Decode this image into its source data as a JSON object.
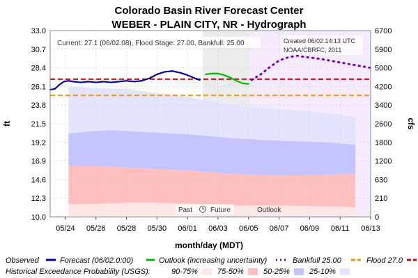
{
  "chart_data": {
    "type": "line",
    "title": "Colorado Basin River Forecast Center",
    "subtitle": "WEBER - PLAIN CITY, NR - Hydrograph",
    "xlabel": "month/day (MDT)",
    "ylabel_left": "ft",
    "ylabel_right": "cfs",
    "x_ticks": [
      "05/24",
      "05/26",
      "05/28",
      "05/30",
      "06/01",
      "06/03",
      "06/05",
      "06/07",
      "06/09",
      "06/11",
      "06/13"
    ],
    "y_ticks_left": [
      "33.0",
      "30.7",
      "28.4",
      "26.1",
      "23.8",
      "21.5",
      "19.2",
      "16.9",
      "14.6",
      "12.3",
      "10.0"
    ],
    "y_ticks_right": [
      "6700",
      "5900",
      "5000",
      "4200",
      "3400",
      "2600",
      "1800",
      "1200",
      "630",
      "210",
      "0"
    ],
    "xlim_days_from_may23": [
      0,
      21
    ],
    "ylim_ft": [
      10.0,
      33.0
    ],
    "current_info": "Current: 27.1 (06/02.08), Flood Stage: 27.00, Bankfull: 25.00",
    "created_line1": "Created 06/02.14:13 UTC",
    "created_line2": "NOAA/CBRFC, 2011",
    "region_labels": {
      "past": "Past",
      "future": "Future",
      "outlook": "Outlook"
    },
    "flood_stage": 27.0,
    "bankfull": 25.0,
    "series": [
      {
        "name": "Observed",
        "color": "#000099",
        "points": [
          [
            0.0,
            25.7
          ],
          [
            0.3,
            25.8
          ],
          [
            0.6,
            26.3
          ],
          [
            0.9,
            26.7
          ],
          [
            1.2,
            26.8
          ],
          [
            1.5,
            26.7
          ],
          [
            2.0,
            26.6
          ],
          [
            2.5,
            26.7
          ],
          [
            3.0,
            26.6
          ],
          [
            3.5,
            26.7
          ],
          [
            4.0,
            26.6
          ],
          [
            4.5,
            26.7
          ],
          [
            5.0,
            26.8
          ],
          [
            5.5,
            26.7
          ],
          [
            6.0,
            26.8
          ],
          [
            6.5,
            27.1
          ],
          [
            7.0,
            27.6
          ],
          [
            7.5,
            27.9
          ],
          [
            8.0,
            28.0
          ],
          [
            8.5,
            27.8
          ],
          [
            9.0,
            27.5
          ],
          [
            9.5,
            27.1
          ],
          [
            9.8,
            26.9
          ]
        ]
      },
      {
        "name": "Forecast (06/02.0:00)",
        "color": "#00bb00",
        "points": [
          [
            10.2,
            27.6
          ],
          [
            10.6,
            27.7
          ],
          [
            11.0,
            27.7
          ],
          [
            11.4,
            27.5
          ],
          [
            11.8,
            27.2
          ],
          [
            12.2,
            26.8
          ],
          [
            12.6,
            26.5
          ],
          [
            13.0,
            26.4
          ]
        ]
      },
      {
        "name": "Outlook (increasing uncertainty)",
        "color": "#7700bb",
        "points": [
          [
            13.2,
            26.9
          ],
          [
            13.8,
            27.6
          ],
          [
            14.4,
            28.5
          ],
          [
            15.0,
            29.3
          ],
          [
            15.6,
            29.7
          ],
          [
            16.2,
            29.9
          ],
          [
            16.8,
            29.7
          ],
          [
            17.4,
            29.6
          ],
          [
            18.0,
            29.4
          ],
          [
            18.6,
            29.2
          ],
          [
            19.2,
            29.0
          ],
          [
            19.8,
            28.8
          ],
          [
            20.4,
            28.6
          ],
          [
            21.0,
            28.4
          ]
        ]
      }
    ],
    "exceedance_bands": [
      {
        "name": "90-75%",
        "color": "#fde6e6",
        "lower": [
          [
            1.2,
            10.1
          ],
          [
            21.0,
            10.2
          ]
        ],
        "upper": [
          [
            1.2,
            11.5
          ],
          [
            3.0,
            11.6
          ],
          [
            6.0,
            11.8
          ],
          [
            9.0,
            11.6
          ],
          [
            12.0,
            11.4
          ],
          [
            15.0,
            11.4
          ],
          [
            18.0,
            11.3
          ],
          [
            20.0,
            11.2
          ]
        ]
      },
      {
        "name": "75-50%",
        "color": "#ffbfbf",
        "upper": [
          [
            1.2,
            16.3
          ],
          [
            3.0,
            16.3
          ],
          [
            6.0,
            16.0
          ],
          [
            9.0,
            15.7
          ],
          [
            12.0,
            15.3
          ],
          [
            15.0,
            15.1
          ],
          [
            18.0,
            15.2
          ],
          [
            20.0,
            15.3
          ]
        ]
      },
      {
        "name": "50-25%",
        "color": "#c4c4ff",
        "upper": [
          [
            1.2,
            20.3
          ],
          [
            3.0,
            20.6
          ],
          [
            4.0,
            20.7
          ],
          [
            6.0,
            20.5
          ],
          [
            9.0,
            20.2
          ],
          [
            12.0,
            19.7
          ],
          [
            15.0,
            19.4
          ],
          [
            18.0,
            19.2
          ],
          [
            20.0,
            18.9
          ]
        ]
      },
      {
        "name": "25-10%",
        "color": "#e4e4ff",
        "upper": [
          [
            1.2,
            26.1
          ],
          [
            3.0,
            25.9
          ],
          [
            5.0,
            25.8
          ],
          [
            7.0,
            25.3
          ],
          [
            9.0,
            24.8
          ],
          [
            11.0,
            24.1
          ],
          [
            13.0,
            23.6
          ],
          [
            15.0,
            23.3
          ],
          [
            17.0,
            23.0
          ],
          [
            19.0,
            22.6
          ],
          [
            20.0,
            22.3
          ]
        ]
      }
    ],
    "legend": {
      "observed": "Observed",
      "forecast": "Forecast (06/02.0:00)",
      "outlook": "Outlook (increasing uncertainty)",
      "bankfull": "Bankfull 25.00",
      "flood": "Flood 27.0",
      "hist_label": "Historical Exceedance Probability (USGS):",
      "b1": "90-75%",
      "b2": "75-50%",
      "b3": "50-25%",
      "b4": "25-10%"
    },
    "colors": {
      "observed": "#000099",
      "forecast": "#00bb00",
      "outlook": "#7700bb",
      "bankfull": "#ee9900",
      "flood": "#dd0000",
      "band1": "#fde6e6",
      "band2": "#ffbfbf",
      "band3": "#c4c4ff",
      "band4": "#e4e4ff"
    }
  }
}
